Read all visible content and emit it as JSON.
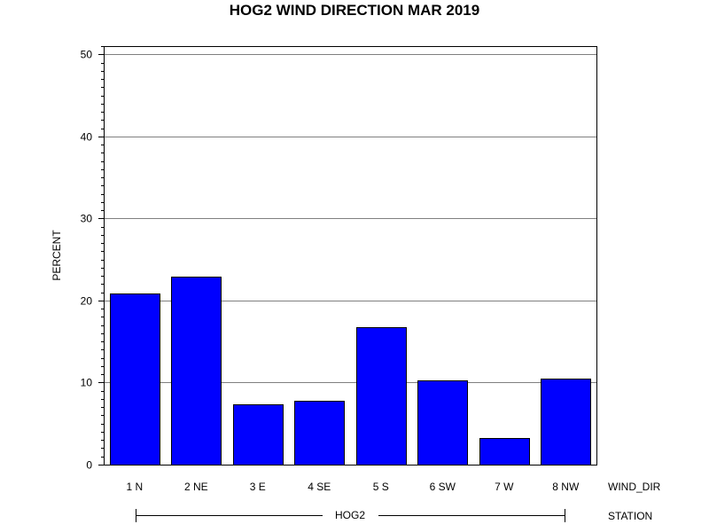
{
  "chart_data": {
    "type": "bar",
    "title": "HOG2 WIND DIRECTION MAR 2019",
    "xlabel": "WIND_DIR",
    "ylabel": "PERCENT",
    "group_axis_label": "STATION",
    "group_label": "HOG2",
    "categories": [
      "1 N",
      "2 NE",
      "3 E",
      "4 SE",
      "5 S",
      "6 SW",
      "7 W",
      "8 NW"
    ],
    "values": [
      20.8,
      22.9,
      7.3,
      7.8,
      16.7,
      10.3,
      3.2,
      10.5
    ],
    "yticks": [
      "0",
      "10",
      "20",
      "30",
      "40",
      "50"
    ],
    "ylim": [
      0,
      51
    ],
    "grid": true,
    "bar_color": "#0000ff",
    "bar_edge_color": "#000000",
    "grid_color": "#7f7f7f"
  }
}
